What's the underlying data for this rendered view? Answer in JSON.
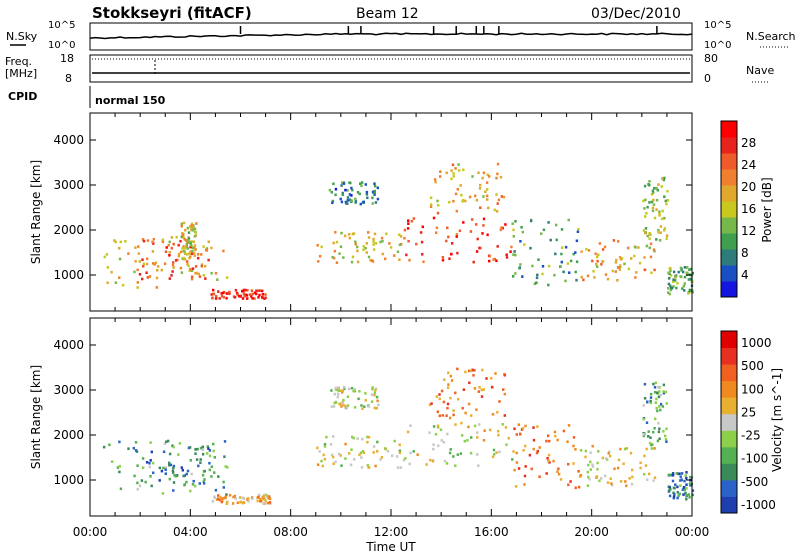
{
  "header": {
    "station": "Stokkseyri (fitACF)",
    "beam": "Beam 12",
    "date": "03/Dec/2010"
  },
  "noise_panel": {
    "left_label": "N.Sky",
    "left_ticks": [
      "10^5",
      "10^0"
    ],
    "right_label": "N.Search",
    "right_ticks": [
      "10^5",
      "10^0"
    ]
  },
  "freq_panel": {
    "left_label_1": "Freq.",
    "left_label_2": "[MHz]",
    "left_ticks": [
      "18",
      "8"
    ],
    "right_label": "Nave",
    "right_ticks": [
      "80",
      "0"
    ]
  },
  "cpid_panel": {
    "label": "CPID",
    "mode": "normal 150"
  },
  "x_axis": {
    "title": "Time UT",
    "ticks": [
      "00:00",
      "04:00",
      "08:00",
      "12:00",
      "16:00",
      "20:00",
      "00:00"
    ]
  },
  "chart_data": [
    {
      "type": "heatmap",
      "name": "power",
      "ylabel": "Slant Range [km]",
      "ylim": [
        200,
        4600
      ],
      "yticks": [
        "1000",
        "2000",
        "3000",
        "4000"
      ],
      "xlim_hours": [
        0,
        24
      ],
      "colorbar": {
        "title": "Power [dB]",
        "tick_labels": [
          "4",
          "8",
          "12",
          "16",
          "20",
          "24",
          "28"
        ],
        "colors": [
          "#1515e0",
          "#1a4fc4",
          "#2d7b7b",
          "#3f9f4f",
          "#77b84a",
          "#c8c81e",
          "#e0a92e",
          "#f08030",
          "#ef5a2a",
          "#e8231d",
          "#ff0000"
        ]
      },
      "regions": [
        {
          "t0": 0.5,
          "t1": 5.5,
          "r0": 700,
          "r1": 1900,
          "level": 0.55
        },
        {
          "t0": 1.8,
          "t1": 4.8,
          "r0": 900,
          "r1": 1800,
          "level": 0.75
        },
        {
          "t0": 3.6,
          "t1": 4.2,
          "r0": 1400,
          "r1": 2200,
          "level": 0.5
        },
        {
          "t0": 4.8,
          "t1": 7.2,
          "r0": 500,
          "r1": 700,
          "level": 0.9
        },
        {
          "t0": 9.0,
          "t1": 12.5,
          "r0": 1300,
          "r1": 2000,
          "level": 0.55
        },
        {
          "t0": 9.5,
          "t1": 11.5,
          "r0": 2600,
          "r1": 3100,
          "level": 0.25
        },
        {
          "t0": 12.5,
          "t1": 16.8,
          "r0": 1300,
          "r1": 2300,
          "level": 0.85
        },
        {
          "t0": 13.5,
          "t1": 16.5,
          "r0": 2400,
          "r1": 3500,
          "level": 0.6
        },
        {
          "t0": 16.8,
          "t1": 19.5,
          "r0": 800,
          "r1": 2300,
          "level": 0.3
        },
        {
          "t0": 19.5,
          "t1": 22.5,
          "r0": 900,
          "r1": 1800,
          "level": 0.6
        },
        {
          "t0": 22.0,
          "t1": 23.0,
          "r0": 1800,
          "r1": 3200,
          "level": 0.45
        },
        {
          "t0": 23.0,
          "t1": 24.0,
          "r0": 600,
          "r1": 1200,
          "level": 0.35
        }
      ]
    },
    {
      "type": "heatmap",
      "name": "velocity",
      "ylabel": "Slant Range [km]",
      "ylim": [
        200,
        4600
      ],
      "yticks": [
        "1000",
        "2000",
        "3000",
        "4000"
      ],
      "xlim_hours": [
        0,
        24
      ],
      "colorbar": {
        "title": "Velocity [m s^-1]",
        "tick_labels": [
          "1000",
          "500",
          "100",
          "25",
          "-25",
          "-100",
          "-500",
          "-1000"
        ],
        "colors": [
          "#1f3fb0",
          "#2b62c8",
          "#3a8a5a",
          "#54b050",
          "#8ccf4a",
          "#c8c8c8",
          "#e8b030",
          "#f08a20",
          "#f06020",
          "#e83020",
          "#e00000"
        ]
      },
      "regions": [
        {
          "t0": 0.5,
          "t1": 5.5,
          "r0": 700,
          "r1": 1900,
          "level": 0.3
        },
        {
          "t0": 1.8,
          "t1": 4.8,
          "r0": 900,
          "r1": 1800,
          "level": 0.2
        },
        {
          "t0": 4.8,
          "t1": 7.2,
          "r0": 500,
          "r1": 700,
          "level": 0.62
        },
        {
          "t0": 9.0,
          "t1": 12.5,
          "r0": 1300,
          "r1": 2000,
          "level": 0.5
        },
        {
          "t0": 9.5,
          "t1": 11.5,
          "r0": 2600,
          "r1": 3100,
          "level": 0.5
        },
        {
          "t0": 12.5,
          "t1": 16.8,
          "r0": 1300,
          "r1": 2300,
          "level": 0.5
        },
        {
          "t0": 13.5,
          "t1": 16.5,
          "r0": 2400,
          "r1": 3500,
          "level": 0.7
        },
        {
          "t0": 16.8,
          "t1": 19.5,
          "r0": 800,
          "r1": 2300,
          "level": 0.72
        },
        {
          "t0": 19.5,
          "t1": 22.5,
          "r0": 900,
          "r1": 1800,
          "level": 0.55
        },
        {
          "t0": 22.0,
          "t1": 23.0,
          "r0": 1800,
          "r1": 3200,
          "level": 0.3
        },
        {
          "t0": 23.0,
          "t1": 24.0,
          "r0": 600,
          "r1": 1200,
          "level": 0.2
        }
      ]
    }
  ]
}
